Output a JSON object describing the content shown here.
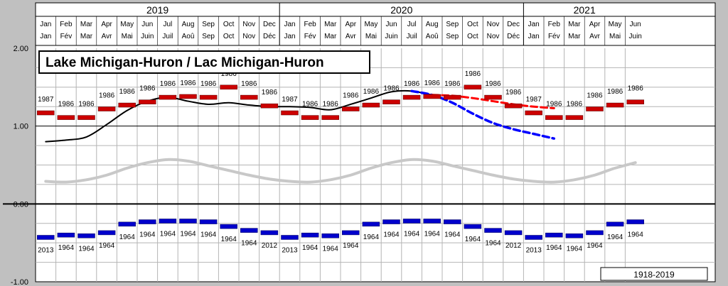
{
  "chart_data": {
    "type": "line",
    "title": "Lake Michigan-Huron / Lac Michigan-Huron",
    "period_label": "1918-2019",
    "ylim": [
      -1.0,
      2.0
    ],
    "yticks": [
      "2.00",
      "1.00",
      "0.00",
      "-1.00"
    ],
    "years": [
      {
        "label": "2019",
        "span": 12
      },
      {
        "label": "2020",
        "span": 12
      },
      {
        "label": "2021",
        "span": 6
      }
    ],
    "months_en": [
      "Jan",
      "Feb",
      "Mar",
      "Apr",
      "May",
      "Jun",
      "Jul",
      "Aug",
      "Sep",
      "Oct",
      "Nov",
      "Dec",
      "Jan",
      "Feb",
      "Mar",
      "Apr",
      "May",
      "Jun",
      "Jul",
      "Aug",
      "Sep",
      "Oct",
      "Nov",
      "Dec",
      "Jan",
      "Feb",
      "Mar",
      "Apr",
      "May",
      "Jun"
    ],
    "months_fr": [
      "Jan",
      "Fév",
      "Mar",
      "Avr",
      "Mai",
      "Juin",
      "Juil",
      "Aoû",
      "Sep",
      "Oct",
      "Nov",
      "Déc",
      "Jan",
      "Fév",
      "Mar",
      "Avr",
      "Mai",
      "Juin",
      "Juil",
      "Aoû",
      "Sep",
      "Oct",
      "Nov",
      "Déc",
      "Jan",
      "Fév",
      "Mar",
      "Avr",
      "Mai",
      "Juin"
    ],
    "record_high": {
      "values": [
        1.17,
        1.11,
        1.11,
        1.22,
        1.27,
        1.31,
        1.37,
        1.38,
        1.37,
        1.5,
        1.37,
        1.26
      ],
      "years": [
        "1987",
        "1986",
        "1986",
        "1986",
        "1986",
        "1986",
        "1986",
        "1986",
        "1986",
        "1986",
        "1986",
        "1986"
      ],
      "color": "#cc0000"
    },
    "record_low": {
      "values": [
        -0.43,
        -0.4,
        -0.41,
        -0.37,
        -0.26,
        -0.23,
        -0.22,
        -0.22,
        -0.23,
        -0.29,
        -0.34,
        -0.37
      ],
      "years": [
        "2013",
        "1964",
        "1964",
        "1964",
        "1964",
        "1964",
        "1964",
        "1964",
        "1964",
        "1964",
        "1964",
        "2012"
      ],
      "color": "#0000cc"
    },
    "series": [
      {
        "name": "observed",
        "color": "#000000",
        "x": [
          0,
          1,
          2,
          3,
          4,
          5,
          6,
          7,
          8,
          9,
          10,
          11,
          12,
          13,
          14,
          15,
          16,
          17,
          18,
          19
        ],
        "values": [
          0.8,
          0.82,
          0.86,
          1.02,
          1.2,
          1.32,
          1.37,
          1.32,
          1.28,
          1.3,
          1.27,
          1.25,
          1.25,
          1.24,
          1.21,
          1.28,
          1.36,
          1.44,
          1.45,
          1.4
        ]
      },
      {
        "name": "average",
        "color": "#c8c8c8",
        "x": [
          0,
          1,
          2,
          3,
          4,
          5,
          6,
          7,
          8,
          9,
          10,
          11,
          12,
          13,
          14,
          15,
          16,
          17,
          18,
          19,
          20,
          21,
          22,
          23,
          24,
          25,
          26,
          27,
          28,
          29
        ],
        "values": [
          0.29,
          0.28,
          0.31,
          0.37,
          0.46,
          0.53,
          0.57,
          0.55,
          0.49,
          0.43,
          0.37,
          0.32,
          0.29,
          0.28,
          0.31,
          0.37,
          0.46,
          0.53,
          0.57,
          0.55,
          0.49,
          0.43,
          0.37,
          0.32,
          0.29,
          0.28,
          0.31,
          0.37,
          0.46,
          0.53
        ]
      },
      {
        "name": "forecast-high",
        "color": "#ff0000",
        "x": [
          19,
          20,
          21,
          22,
          23,
          24,
          25
        ],
        "values": [
          1.4,
          1.39,
          1.36,
          1.32,
          1.28,
          1.25,
          1.23
        ]
      },
      {
        "name": "forecast-low",
        "color": "#0000ff",
        "x": [
          18,
          19,
          20,
          21,
          22,
          23,
          24,
          25
        ],
        "values": [
          1.45,
          1.4,
          1.3,
          1.16,
          1.04,
          0.96,
          0.9,
          0.84
        ]
      }
    ]
  }
}
